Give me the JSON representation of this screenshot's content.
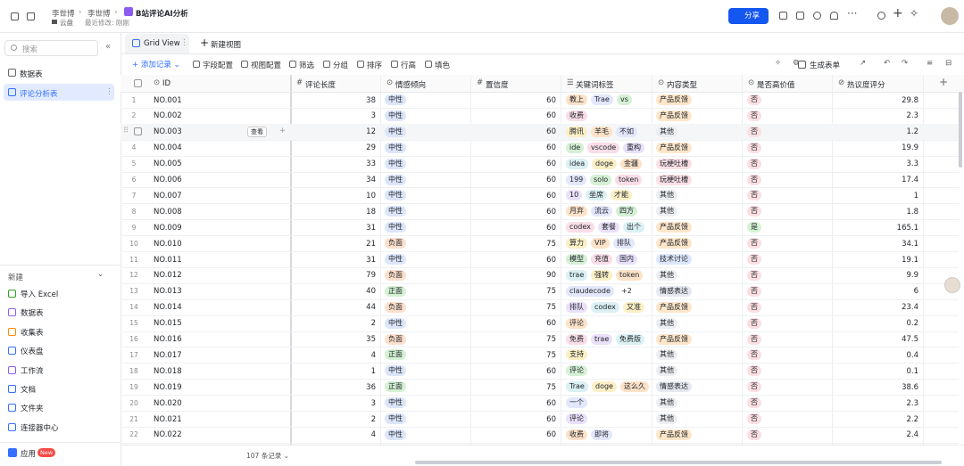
{
  "header": {
    "breadcrumb": [
      "李世博",
      "李世博"
    ],
    "title": "B站评论AI分析",
    "location": "云盘",
    "modified": "最近修改: 刚刚",
    "share": "分享"
  },
  "sidebar": {
    "search": "搜索",
    "tables": [
      "数据表",
      "评论分析表"
    ],
    "new_label": "新建",
    "new_items": [
      "导入 Excel",
      "数据表",
      "收集表",
      "仪表盘",
      "工作流",
      "文档",
      "文件夹",
      "连接器中心"
    ],
    "app": "应用",
    "app_badge": "New"
  },
  "views": {
    "tabs": [
      "Grid View",
      "新建视图"
    ]
  },
  "toolbar": {
    "add": "添加记录",
    "tools": [
      "字段配置",
      "视图配置",
      "筛选",
      "分组",
      "排序",
      "行高",
      "填色"
    ],
    "form": "生成表单"
  },
  "table": {
    "columns": [
      "ID",
      "评论长度",
      "情感倾向",
      "置信度",
      "关键词标签",
      "内容类型",
      "是否高价值",
      "热议度评分"
    ],
    "rows": [
      {
        "n": 1,
        "id": "NO.001",
        "length": 38,
        "sentiment": "中性",
        "confidence": 60,
        "tags": [
          "教上",
          "Trae",
          "vs"
        ],
        "type": "产品反馈",
        "valuable": "否",
        "score": 29.8
      },
      {
        "n": 2,
        "id": "NO.002",
        "length": 3,
        "sentiment": "中性",
        "confidence": 60,
        "tags": [
          "收费"
        ],
        "type": "产品反馈",
        "valuable": "否",
        "score": 2.3
      },
      {
        "id": "NO.003",
        "length": 12,
        "sentiment": "中性",
        "confidence": 60,
        "tags": [
          "腾讯",
          "羊毛",
          "不如"
        ],
        "type": "其他",
        "valuable": "否",
        "score": 1.2
      },
      {
        "n": 4,
        "id": "NO.004",
        "length": 29,
        "sentiment": "中性",
        "confidence": 60,
        "tags": [
          "ide",
          "vscode",
          "重构"
        ],
        "type": "产品反馈",
        "valuable": "否",
        "score": 19.9
      },
      {
        "n": 5,
        "id": "NO.005",
        "length": 33,
        "sentiment": "中性",
        "confidence": 60,
        "tags": [
          "idea",
          "doge",
          "金疆"
        ],
        "type": "玩梗吐槽",
        "valuable": "否",
        "score": 3.3
      },
      {
        "n": 6,
        "id": "NO.006",
        "length": 34,
        "sentiment": "中性",
        "confidence": 60,
        "tags": [
          "199",
          "solo",
          "token"
        ],
        "type": "玩梗吐槽",
        "valuable": "否",
        "score": 17.4
      },
      {
        "n": 7,
        "id": "NO.007",
        "length": 10,
        "sentiment": "中性",
        "confidence": 60,
        "tags": [
          "10",
          "坐席",
          "才能"
        ],
        "type": "其他",
        "valuable": "否",
        "score": 1
      },
      {
        "n": 8,
        "id": "NO.008",
        "length": 18,
        "sentiment": "中性",
        "confidence": 60,
        "tags": [
          "月弃",
          "流云",
          "四方"
        ],
        "type": "其他",
        "valuable": "否",
        "score": 1.8
      },
      {
        "n": 9,
        "id": "NO.009",
        "length": 31,
        "sentiment": "中性",
        "confidence": 60,
        "tags": [
          "codex",
          "套餐",
          "出个"
        ],
        "type": "产品反馈",
        "valuable": "是",
        "score": 165.1
      },
      {
        "n": 10,
        "id": "NO.010",
        "length": 21,
        "sentiment": "负面",
        "confidence": 75,
        "tags": [
          "算力",
          "VIP",
          "排队"
        ],
        "type": "产品反馈",
        "valuable": "否",
        "score": 34.1
      },
      {
        "n": 11,
        "id": "NO.011",
        "length": 31,
        "sentiment": "中性",
        "confidence": 60,
        "tags": [
          "模型",
          "充值",
          "国内"
        ],
        "type": "技术讨论",
        "valuable": "否",
        "score": 19.1
      },
      {
        "n": 12,
        "id": "NO.012",
        "length": 79,
        "sentiment": "负面",
        "confidence": 90,
        "tags": [
          "trae",
          "强转",
          "token"
        ],
        "type": "其他",
        "valuable": "否",
        "score": 9.9
      },
      {
        "n": 13,
        "id": "NO.013",
        "length": 40,
        "sentiment": "正面",
        "confidence": 75,
        "tags": [
          "claudecode",
          "+2"
        ],
        "type": "情感表达",
        "valuable": "否",
        "score": 6
      },
      {
        "n": 14,
        "id": "NO.014",
        "length": 44,
        "sentiment": "负面",
        "confidence": 75,
        "tags": [
          "排队",
          "codex",
          "又准"
        ],
        "type": "产品反馈",
        "valuable": "否",
        "score": 23.4
      },
      {
        "n": 15,
        "id": "NO.015",
        "length": 2,
        "sentiment": "中性",
        "confidence": 60,
        "tags": [
          "评论"
        ],
        "type": "其他",
        "valuable": "否",
        "score": 0.2
      },
      {
        "n": 16,
        "id": "NO.016",
        "length": 35,
        "sentiment": "负面",
        "confidence": 75,
        "tags": [
          "免费",
          "trae",
          "免费版"
        ],
        "type": "产品反馈",
        "valuable": "否",
        "score": 47.5
      },
      {
        "n": 17,
        "id": "NO.017",
        "length": 4,
        "sentiment": "正面",
        "confidence": 75,
        "tags": [
          "支持"
        ],
        "type": "其他",
        "valuable": "否",
        "score": 0.4
      },
      {
        "n": 18,
        "id": "NO.018",
        "length": 1,
        "sentiment": "中性",
        "confidence": 60,
        "tags": [
          "评论"
        ],
        "type": "其他",
        "valuable": "否",
        "score": 0.1
      },
      {
        "n": 19,
        "id": "NO.019",
        "length": 36,
        "sentiment": "正面",
        "confidence": 75,
        "tags": [
          "Trae",
          "doge",
          "这么久"
        ],
        "type": "情感表达",
        "valuable": "否",
        "score": 38.6
      },
      {
        "n": 20,
        "id": "NO.020",
        "length": 3,
        "sentiment": "中性",
        "confidence": 60,
        "tags": [
          "一个"
        ],
        "type": "其他",
        "valuable": "否",
        "score": 2.3
      },
      {
        "n": 21,
        "id": "NO.021",
        "length": 2,
        "sentiment": "中性",
        "confidence": 60,
        "tags": [
          "评论"
        ],
        "type": "其他",
        "valuable": "否",
        "score": 2.2
      },
      {
        "n": 22,
        "id": "NO.022",
        "length": 4,
        "sentiment": "中性",
        "confidence": 60,
        "tags": [
          "收费",
          "即将"
        ],
        "type": "产品反馈",
        "valuable": "否",
        "score": 2.4
      }
    ],
    "hover_action": "查看",
    "footer": "107 条记录"
  }
}
